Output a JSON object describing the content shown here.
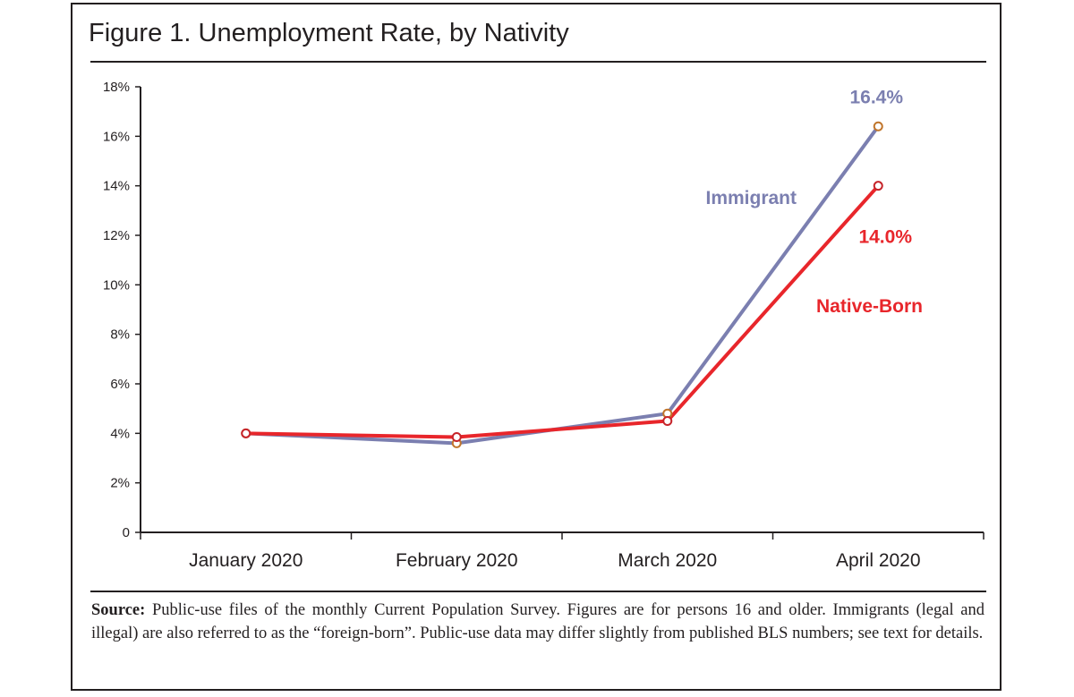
{
  "figure": {
    "title": "Figure 1. Unemployment Rate, by Nativity",
    "source_label": "Source:",
    "source_text": "Public-use files of the monthly Current Population Survey.  Figures are for persons 16 and older. Immigrants (legal and illegal) are also referred to as the “foreign-born”. Public-use data may differ slightly from published BLS numbers; see text for details."
  },
  "chart_data": {
    "type": "line",
    "title": "Figure 1. Unemployment Rate, by Nativity",
    "xlabel": "",
    "ylabel": "",
    "categories": [
      "January 2020",
      "February 2020",
      "March 2020",
      "April 2020"
    ],
    "ylim": [
      0,
      18
    ],
    "yticks": [
      0,
      2,
      4,
      6,
      8,
      10,
      12,
      14,
      16,
      18
    ],
    "ytick_labels": [
      "0",
      "2%",
      "4%",
      "6%",
      "8%",
      "10%",
      "12%",
      "14%",
      "16%",
      "18%"
    ],
    "grid": false,
    "series": [
      {
        "name": "Immigrant",
        "values": [
          4.0,
          3.6,
          4.8,
          16.4
        ],
        "color": "#7b7fb0",
        "marker_color": "#c0752b",
        "end_label": "16.4%"
      },
      {
        "name": "Native-Born",
        "values": [
          4.0,
          3.85,
          4.5,
          14.0
        ],
        "color": "#e8262b",
        "marker_color": "#c6242a",
        "end_label": "14.0%"
      }
    ]
  }
}
